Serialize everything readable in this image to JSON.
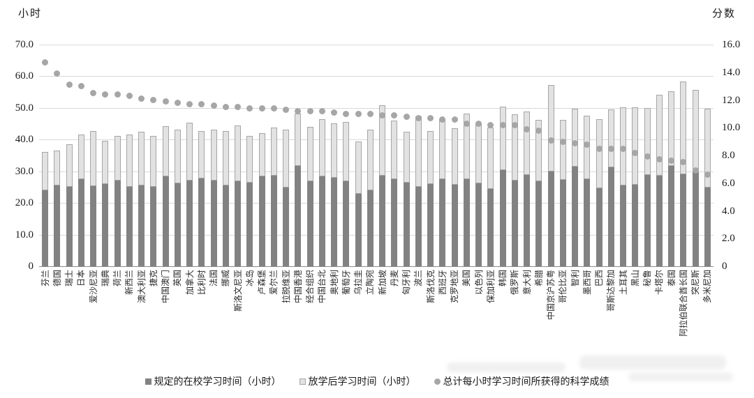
{
  "chart_data": {
    "type": "combo-stacked-bar-with-dots",
    "title": "",
    "left_axis": {
      "title": "小时",
      "max": 70,
      "tick_values": [
        0,
        10,
        20,
        30,
        40,
        50,
        60,
        70
      ],
      "tick_labels": [
        "0",
        "10.0",
        "20.0",
        "30.0",
        "40.0",
        "50.0",
        "60.0",
        "70.0"
      ]
    },
    "right_axis": {
      "title": "分数",
      "max": 16,
      "tick_values": [
        0,
        2,
        4,
        6,
        8,
        10,
        12,
        14,
        16
      ],
      "tick_labels": [
        "0",
        "2.0",
        "4.0",
        "6.0",
        "8.0",
        "10.0",
        "12.0",
        "14.0",
        "16.0"
      ]
    },
    "grid": "horizontal",
    "legend_position": "bottom",
    "categories": [
      "芬兰",
      "德国",
      "瑞士",
      "日本",
      "爱沙尼亚",
      "瑞典",
      "荷兰",
      "新西兰",
      "澳大利亚",
      "捷克",
      "中国澳门",
      "英国",
      "加拿大",
      "比利时",
      "法国",
      "挪威",
      "斯洛文尼亚",
      "冰岛",
      "卢森堡",
      "爱尔兰",
      "拉脱维亚",
      "中国香港",
      "经合组织",
      "中国台北",
      "奥地利",
      "葡萄牙",
      "乌拉圭",
      "立陶宛",
      "新加坡",
      "丹麦",
      "匈牙利",
      "波兰",
      "斯洛伐克",
      "西班牙",
      "克罗地亚",
      "美国",
      "以色列",
      "保加利亚",
      "韩国",
      "俄罗斯",
      "意大利",
      "希腊",
      "中国京沪苏粤",
      "哥伦比亚",
      "智利",
      "墨西哥",
      "巴西",
      "哥斯达黎加",
      "土耳其",
      "黑山",
      "秘鲁",
      "卡塔尔",
      "泰国",
      "阿拉伯联合酋长国",
      "突尼斯",
      "多米尼加"
    ],
    "series": [
      {
        "name": "规定的在校学习时间（小时）",
        "type": "bar-stack",
        "axis": "left",
        "marker": "square-dark",
        "values": [
          24.1,
          25.5,
          25.2,
          27.5,
          25.3,
          26.0,
          27.0,
          25.0,
          25.6,
          25.0,
          28.4,
          26.3,
          27.1,
          27.7,
          27.1,
          25.5,
          26.9,
          26.5,
          28.3,
          28.6,
          24.9,
          31.7,
          26.9,
          28.5,
          28.0,
          26.8,
          23.0,
          24.0,
          28.7,
          27.5,
          26.5,
          25.1,
          26.0,
          27.5,
          25.8,
          27.6,
          26.1,
          24.4,
          30.3,
          27.1,
          28.8,
          26.9,
          30.0,
          27.2,
          31.5,
          27.6,
          24.7,
          31.3,
          25.6,
          25.8,
          28.8,
          28.6,
          31.7,
          29.1,
          29.8,
          24.8
        ]
      },
      {
        "name": "放学后学习时间（小时）",
        "type": "bar-stack",
        "axis": "left",
        "marker": "square-light",
        "values": [
          12.0,
          11.0,
          13.3,
          14.0,
          17.3,
          13.7,
          14.1,
          16.7,
          16.8,
          16.2,
          15.9,
          16.9,
          18.3,
          15.1,
          16.0,
          17.3,
          17.6,
          14.6,
          13.7,
          15.3,
          18.2,
          16.5,
          17.2,
          17.9,
          17.1,
          18.8,
          16.5,
          19.2,
          22.2,
          18.5,
          16.0,
          22.2,
          16.7,
          19.0,
          17.7,
          20.6,
          19.3,
          19.5,
          20.2,
          20.8,
          20.0,
          19.4,
          27.2,
          19.1,
          18.3,
          20.0,
          21.7,
          18.2,
          24.6,
          24.4,
          21.2,
          25.6,
          23.5,
          29.2,
          25.8,
          25.0
        ]
      },
      {
        "name": "总计每小时学习时间所获得的科学成绩",
        "type": "dot",
        "axis": "right",
        "marker": "circle",
        "values": [
          14.7,
          13.9,
          13.1,
          13.0,
          12.5,
          12.4,
          12.4,
          12.3,
          12.1,
          12.0,
          11.9,
          11.8,
          11.7,
          11.7,
          11.6,
          11.5,
          11.5,
          11.4,
          11.4,
          11.4,
          11.3,
          11.2,
          11.2,
          11.2,
          11.1,
          11.0,
          11.0,
          11.0,
          10.9,
          10.9,
          10.8,
          10.7,
          10.7,
          10.6,
          10.6,
          10.3,
          10.3,
          10.2,
          10.2,
          10.2,
          9.9,
          9.8,
          9.1,
          9.0,
          8.9,
          8.8,
          8.5,
          8.5,
          8.5,
          8.2,
          7.9,
          7.7,
          7.6,
          7.5,
          6.9,
          6.6
        ]
      }
    ],
    "colors": {
      "bar_in_school": "#828282",
      "bar_after_school": "#e2e2e2",
      "bar_after_school_border": "#a6a6a6",
      "dot": "#a6a6a6",
      "gridline": "#d9d9d9",
      "axis_line": "#8c8c8c",
      "text": "#1a1a1a"
    }
  }
}
